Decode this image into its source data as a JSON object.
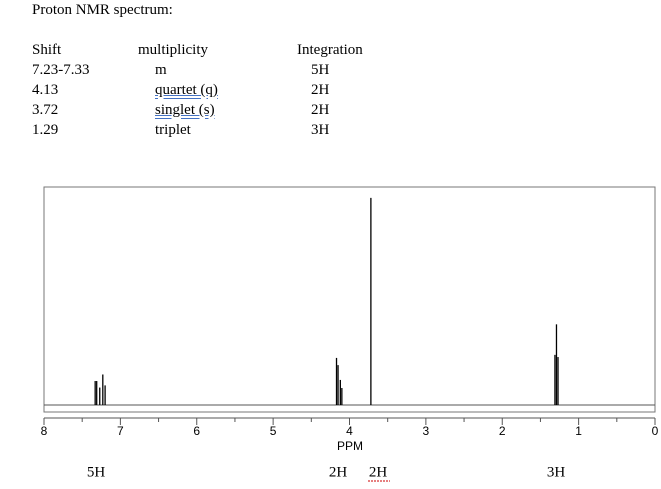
{
  "header": {
    "title": "Proton NMR spectrum:"
  },
  "table": {
    "columns": [
      "Shift",
      "multiplicity",
      "Integration"
    ],
    "rows": [
      [
        "7.23-7.33",
        "m",
        "5H"
      ],
      [
        "4.13",
        "quartet (q)",
        "2H"
      ],
      [
        "3.72",
        "singlet (s)",
        "2H"
      ],
      [
        "1.29",
        "triplet",
        "3H"
      ]
    ]
  },
  "chart_data": {
    "type": "spectrum",
    "x_label": "PPM",
    "x": [
      7.33,
      7.31,
      7.27,
      7.23,
      7.2,
      4.17,
      4.15,
      4.12,
      4.1,
      3.72,
      1.31,
      1.29,
      1.27
    ],
    "values": [
      11,
      11,
      8,
      14,
      9,
      21.6,
      18.3,
      11.5,
      7.8,
      95,
      23,
      37,
      22
    ],
    "color": "#000000",
    "xlim": [
      8,
      0
    ],
    "xticks": [
      8,
      7,
      6,
      5,
      4,
      3,
      2,
      1,
      0
    ],
    "ylim": [
      0,
      100
    ],
    "integration_labels": [
      "5H",
      "2H",
      "2H",
      "3H"
    ]
  }
}
